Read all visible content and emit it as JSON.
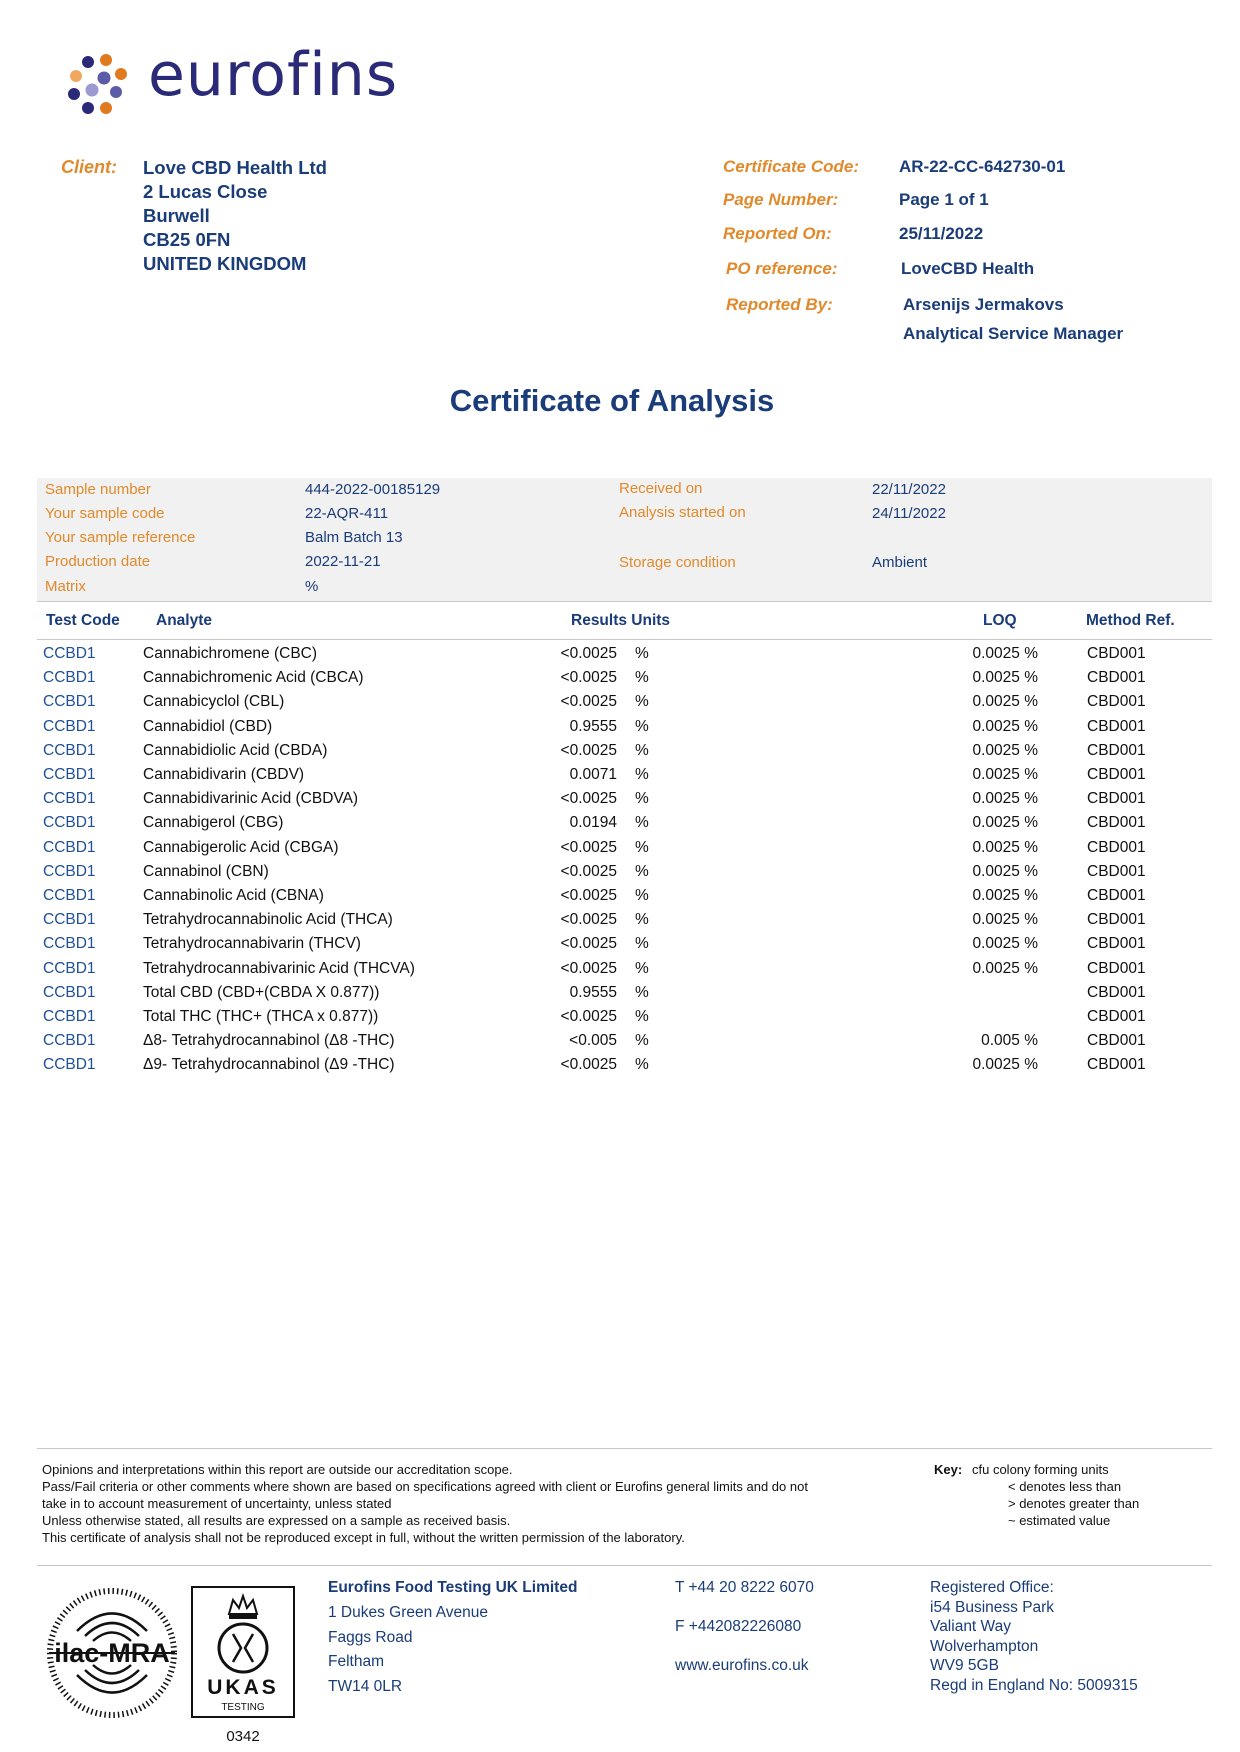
{
  "logo": {
    "text": "eurofins",
    "colors": {
      "navy": "#2a2a78",
      "orange": "#e07a1f",
      "light_orange": "#f0a860",
      "purple": "#5b5ba8",
      "lavender": "#9a9ad0"
    }
  },
  "client": {
    "label": "Client:",
    "lines": [
      "Love CBD Health Ltd",
      "2 Lucas Close",
      "Burwell",
      "CB25 0FN",
      "UNITED KINGDOM"
    ]
  },
  "report_info": [
    {
      "label": "Certificate Code:",
      "value": "AR-22-CC-642730-01"
    },
    {
      "label": "Page Number:",
      "value": "Page 1 of 1"
    },
    {
      "label": "Reported On:",
      "value": "25/11/2022"
    },
    {
      "label": "PO reference:",
      "value": "LoveCBD Health"
    },
    {
      "label": "Reported By:",
      "value": "Arsenijs Jermakovs",
      "value2": "Analytical Service Manager"
    }
  ],
  "title": "Certificate of Analysis",
  "sample": {
    "left": [
      {
        "label": "Sample number",
        "value": "444-2022-00185129"
      },
      {
        "label": "Your sample code",
        "value": "22-AQR-411"
      },
      {
        "label": "Your sample reference",
        "value": "Balm Batch 13"
      },
      {
        "label": "Production date",
        "value": "2022-11-21"
      },
      {
        "label": "Matrix",
        "value": "%"
      }
    ],
    "right": [
      {
        "label": "Received on",
        "value": "22/11/2022"
      },
      {
        "label": "Analysis started on",
        "value": "24/11/2022"
      },
      {
        "label": "Storage condition",
        "value": "Ambient"
      }
    ]
  },
  "table": {
    "headers": {
      "test_code": "Test Code",
      "analyte": "Analyte",
      "results_units": "Results Units",
      "loq": "LOQ",
      "method": "Method Ref."
    },
    "rows": [
      {
        "code": "CCBD1",
        "analyte": "Cannabichromene (CBC)",
        "result": "<0.0025",
        "unit": "%",
        "loq": "0.0025 %",
        "method": "CBD001"
      },
      {
        "code": "CCBD1",
        "analyte": "Cannabichromenic Acid (CBCA)",
        "result": "<0.0025",
        "unit": "%",
        "loq": "0.0025 %",
        "method": "CBD001"
      },
      {
        "code": "CCBD1",
        "analyte": "Cannabicyclol (CBL)",
        "result": "<0.0025",
        "unit": "%",
        "loq": "0.0025 %",
        "method": "CBD001"
      },
      {
        "code": "CCBD1",
        "analyte": "Cannabidiol (CBD)",
        "result": "0.9555",
        "unit": "%",
        "loq": "0.0025 %",
        "method": "CBD001"
      },
      {
        "code": "CCBD1",
        "analyte": "Cannabidiolic Acid (CBDA)",
        "result": "<0.0025",
        "unit": "%",
        "loq": "0.0025 %",
        "method": "CBD001"
      },
      {
        "code": "CCBD1",
        "analyte": "Cannabidivarin (CBDV)",
        "result": "0.0071",
        "unit": "%",
        "loq": "0.0025 %",
        "method": "CBD001"
      },
      {
        "code": "CCBD1",
        "analyte": "Cannabidivarinic Acid (CBDVA)",
        "result": "<0.0025",
        "unit": "%",
        "loq": "0.0025 %",
        "method": "CBD001"
      },
      {
        "code": "CCBD1",
        "analyte": "Cannabigerol (CBG)",
        "result": "0.0194",
        "unit": "%",
        "loq": "0.0025 %",
        "method": "CBD001"
      },
      {
        "code": "CCBD1",
        "analyte": "Cannabigerolic Acid (CBGA)",
        "result": "<0.0025",
        "unit": "%",
        "loq": "0.0025 %",
        "method": "CBD001"
      },
      {
        "code": "CCBD1",
        "analyte": "Cannabinol (CBN)",
        "result": "<0.0025",
        "unit": "%",
        "loq": "0.0025 %",
        "method": "CBD001"
      },
      {
        "code": "CCBD1",
        "analyte": "Cannabinolic Acid (CBNA)",
        "result": "<0.0025",
        "unit": "%",
        "loq": "0.0025 %",
        "method": "CBD001"
      },
      {
        "code": "CCBD1",
        "analyte": "Tetrahydrocannabinolic Acid (THCA)",
        "result": "<0.0025",
        "unit": "%",
        "loq": "0.0025 %",
        "method": "CBD001"
      },
      {
        "code": "CCBD1",
        "analyte": "Tetrahydrocannabivarin (THCV)",
        "result": "<0.0025",
        "unit": "%",
        "loq": "0.0025 %",
        "method": "CBD001"
      },
      {
        "code": "CCBD1",
        "analyte": "Tetrahydrocannabivarinic Acid (THCVA)",
        "result": "<0.0025",
        "unit": "%",
        "loq": "0.0025 %",
        "method": "CBD001"
      },
      {
        "code": "CCBD1",
        "analyte": "Total CBD (CBD+(CBDA X 0.877))",
        "result": "0.9555",
        "unit": "%",
        "loq": "",
        "method": "CBD001"
      },
      {
        "code": "CCBD1",
        "analyte": "Total THC (THC+ (THCA x 0.877))",
        "result": "<0.0025",
        "unit": "%",
        "loq": "",
        "method": "CBD001"
      },
      {
        "code": "CCBD1",
        "analyte": "Δ8- Tetrahydrocannabinol (Δ8 -THC)",
        "result": "<0.005",
        "unit": "%",
        "loq": "0.005 %",
        "method": "CBD001"
      },
      {
        "code": "CCBD1",
        "analyte": "Δ9- Tetrahydrocannabinol (Δ9 -THC)",
        "result": "<0.0025",
        "unit": "%",
        "loq": "0.0025 %",
        "method": "CBD001"
      }
    ]
  },
  "notes": [
    "Opinions and interpretations within this report are outside our accreditation scope.",
    "Pass/Fail criteria or other comments where shown are based on specifications agreed with client or Eurofins general limits and do not",
    "take in to account measurement of uncertainty, unless stated",
    "Unless otherwise stated, all results are expressed on a sample as received basis.",
    "This certificate of analysis shall not be reproduced except in full, without the written permission of the laboratory."
  ],
  "key": {
    "label": "Key:",
    "items": [
      "cfu colony forming units",
      "< denotes less than",
      "> denotes greater than",
      "~ estimated value"
    ]
  },
  "footer": {
    "ilac_text": "ilac-MRA",
    "ukas_text": "UKAS",
    "ukas_sub": "TESTING",
    "ukas_number": "0342",
    "company": [
      "Eurofins Food Testing UK Limited",
      "1 Dukes Green Avenue",
      "Faggs Road",
      "Feltham",
      "TW14 0LR"
    ],
    "contact": [
      "T  +44 20 8222 6070",
      "F  +442082226080",
      "www.eurofins.co.uk"
    ],
    "registered": [
      "Registered Office:",
      "i54 Business Park",
      "Valiant Way",
      "Wolverhampton",
      "WV9 5GB",
      "Regd in England No: 5009315"
    ]
  }
}
